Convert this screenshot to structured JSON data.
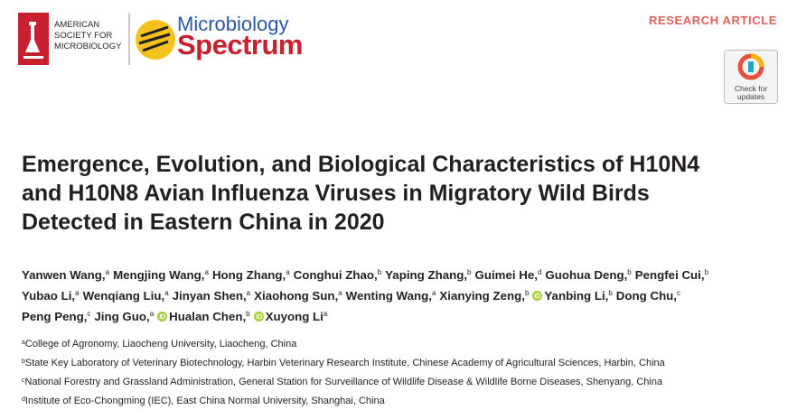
{
  "header": {
    "society": [
      "AMERICAN",
      "SOCIETY FOR",
      "MICROBIOLOGY"
    ],
    "journal_top": "Microbiology",
    "journal_bottom": "Spectrum",
    "article_type": "RESEARCH ARTICLE",
    "check_badge": [
      "Check for",
      "updates"
    ]
  },
  "title": [
    "Emergence, Evolution, and Biological Characteristics of H10N4",
    "and H10N8 Avian Influenza Viruses in Migratory Wild Birds",
    "Detected in Eastern China in 2020"
  ],
  "authors": [
    [
      {
        "name": "Yanwen Wang,",
        "sup": "a"
      },
      {
        "name": "Mengjing Wang,",
        "sup": "a"
      },
      {
        "name": "Hong Zhang,",
        "sup": "a"
      },
      {
        "name": "Conghui Zhao,",
        "sup": "b"
      },
      {
        "name": "Yaping Zhang,",
        "sup": "b"
      },
      {
        "name": "Guimei He,",
        "sup": "d"
      },
      {
        "name": "Guohua Deng,",
        "sup": "b"
      },
      {
        "name": "Pengfei Cui,",
        "sup": "b"
      }
    ],
    [
      {
        "name": "Yubao Li,",
        "sup": "a"
      },
      {
        "name": "Wenqiang Liu,",
        "sup": "a"
      },
      {
        "name": "Jinyan Shen,",
        "sup": "a"
      },
      {
        "name": "Xiaohong Sun,",
        "sup": "a"
      },
      {
        "name": "Wenting Wang,",
        "sup": "a"
      },
      {
        "name": "Xianying Zeng,",
        "sup": "b"
      },
      {
        "name": "Yanbing Li,",
        "sup": "b",
        "orcid": true
      },
      {
        "name": "Dong Chu,",
        "sup": "c"
      }
    ],
    [
      {
        "name": "Peng Peng,",
        "sup": "c"
      },
      {
        "name": "Jing Guo,",
        "sup": "a"
      },
      {
        "name": "Hualan Chen,",
        "sup": "b",
        "orcid": true
      },
      {
        "name": "Xuyong Li",
        "sup": "a",
        "orcid": true
      }
    ]
  ],
  "affiliations": [
    {
      "mark": "a",
      "text": "College of Agronomy, Liaocheng University, Liaocheng, China"
    },
    {
      "mark": "b",
      "text": "State Key Laboratory of Veterinary Biotechnology, Harbin Veterinary Research Institute, Chinese Academy of Agricultural Sciences, Harbin, China"
    },
    {
      "mark": "c",
      "text": "National Forestry and Grassland Administration, General Station for Surveillance of Wildlife Disease & Wildlife Borne Diseases, Shenyang, China"
    },
    {
      "mark": "d",
      "text": "Institute of Eco-Chongming (IEC), East China Normal University, Shanghai, China"
    }
  ]
}
